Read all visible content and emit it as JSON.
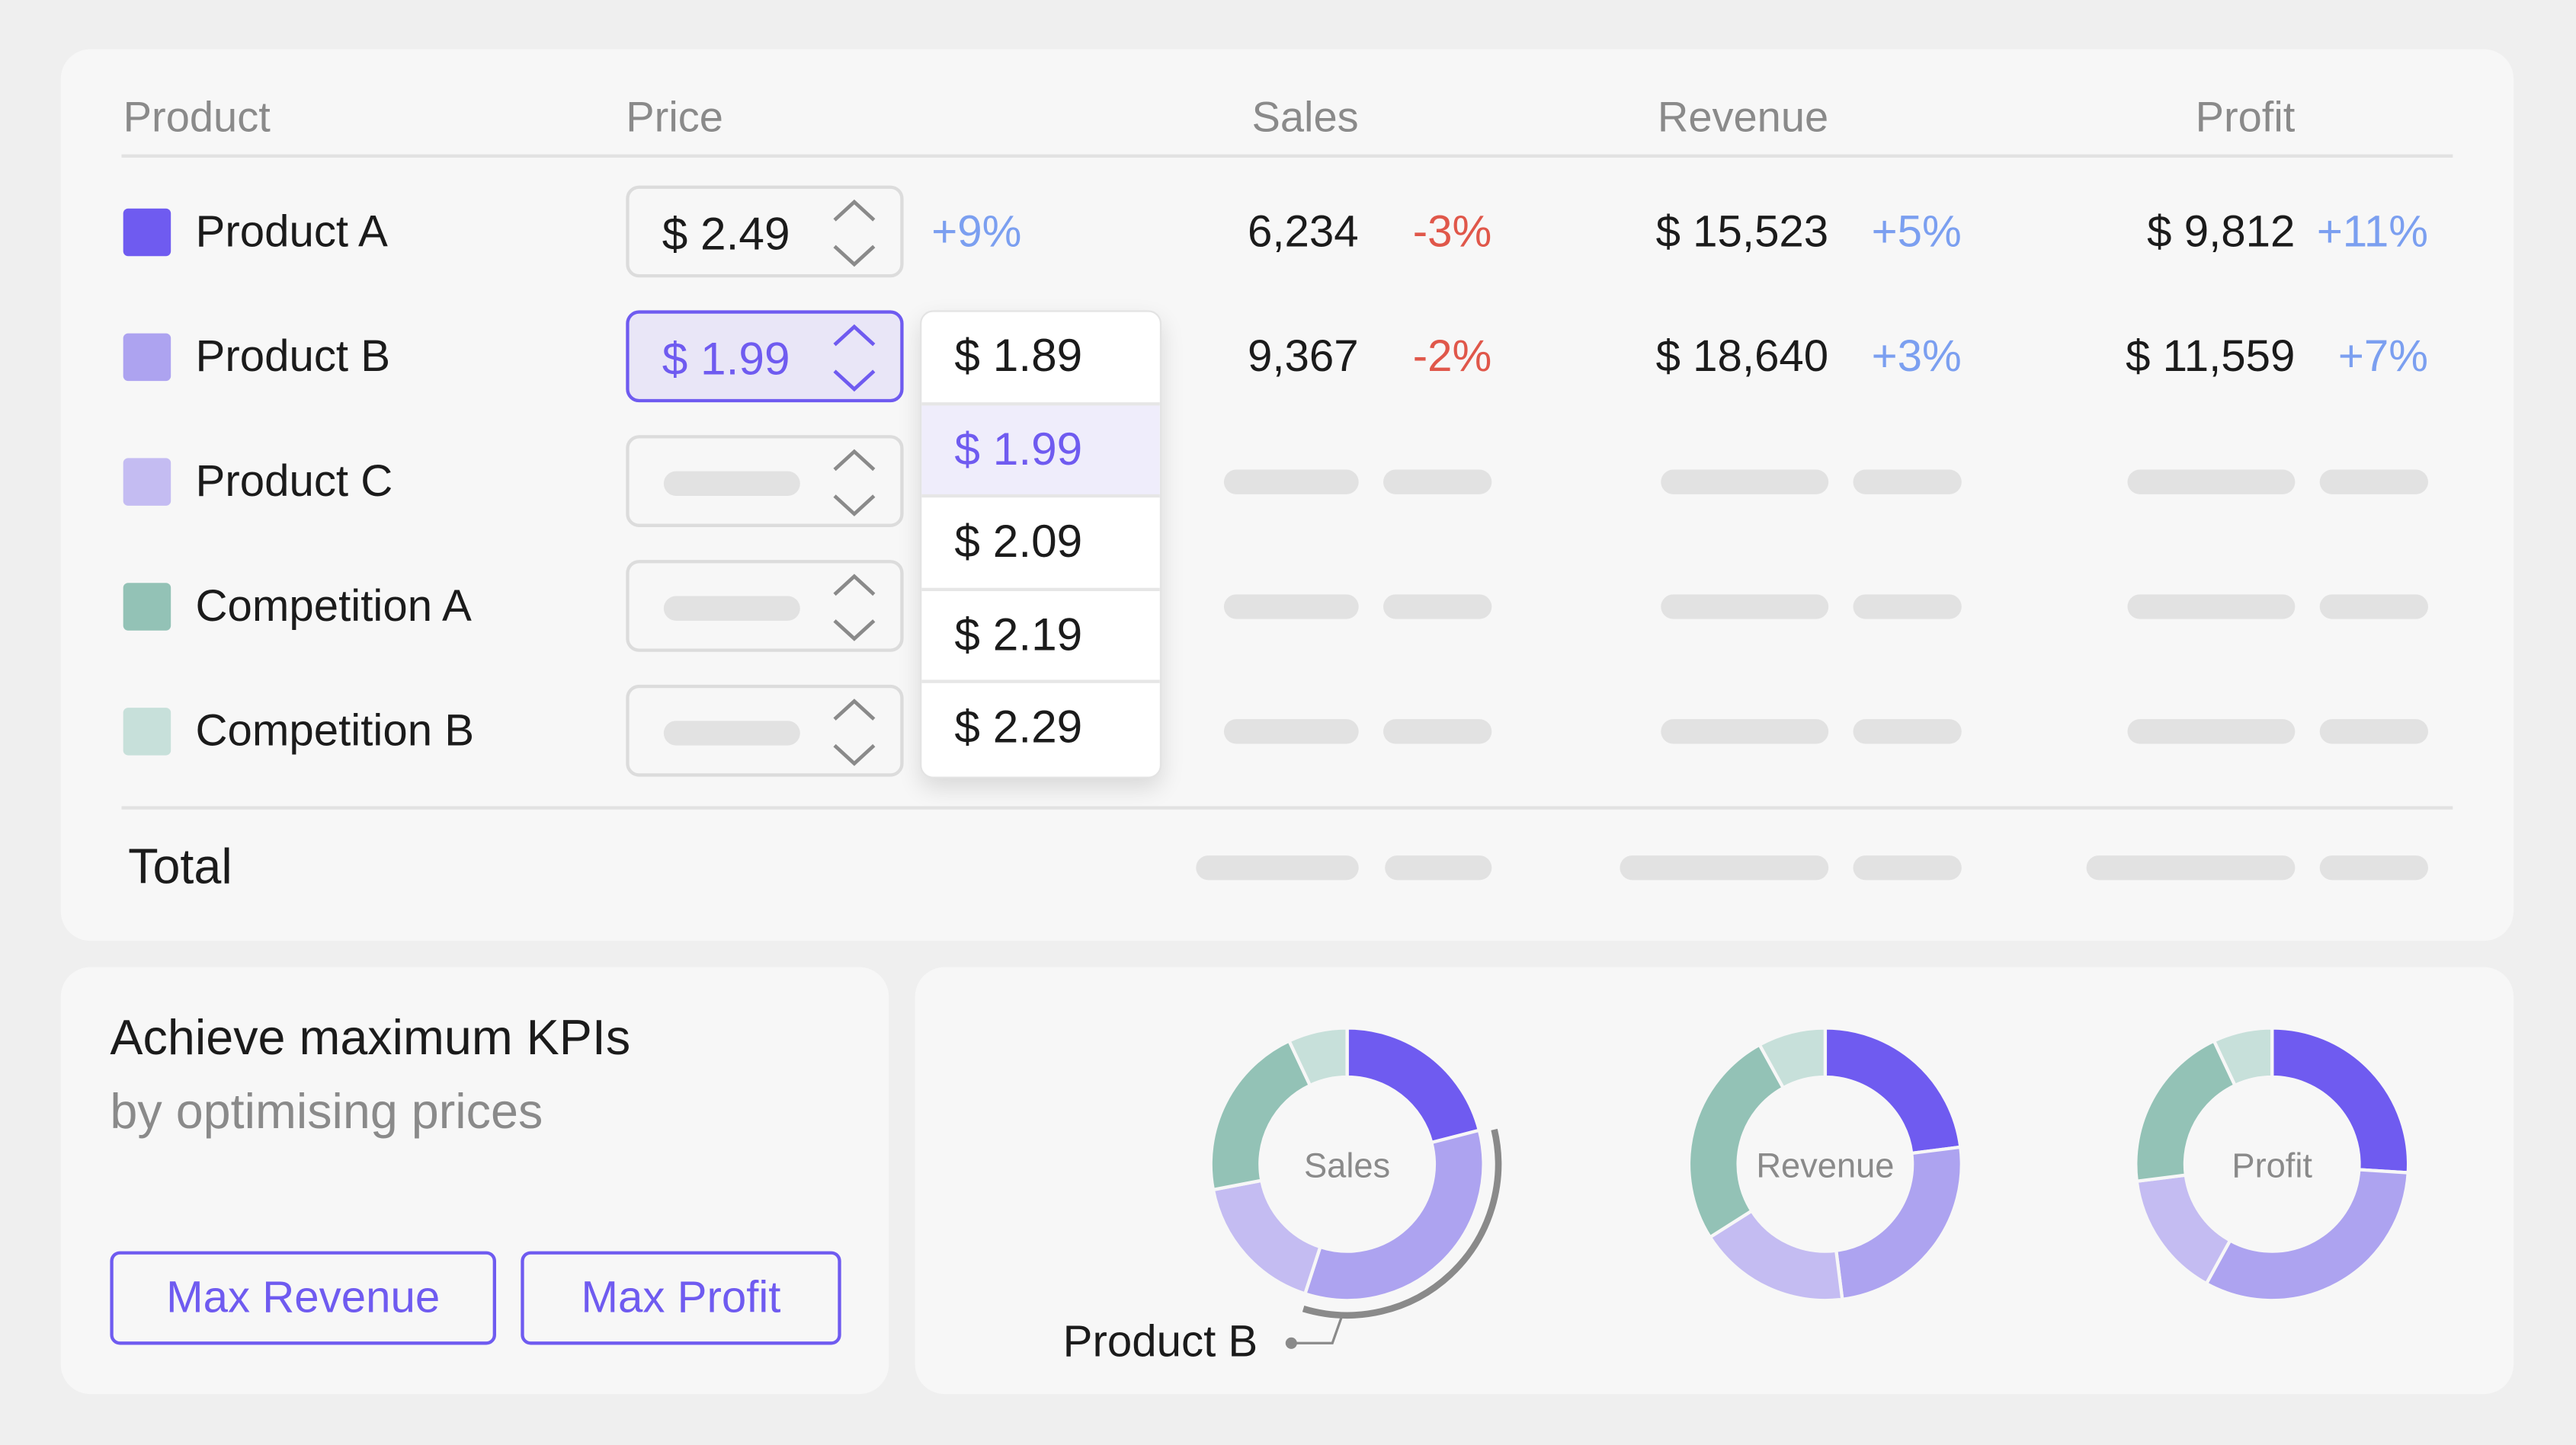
{
  "table": {
    "headers": {
      "product": "Product",
      "price": "Price",
      "sales": "Sales",
      "revenue": "Revenue",
      "profit": "Profit"
    },
    "rows": [
      {
        "name": "Product A",
        "color": "#6f5bf0",
        "price": "$ 2.49",
        "price_change": "+9%",
        "sales": "6,234",
        "sales_change": "-3%",
        "revenue": "$ 15,523",
        "revenue_change": "+5%",
        "profit": "$ 9,812",
        "profit_change": "+11%"
      },
      {
        "name": "Product B",
        "color": "#ada3f0",
        "price": "$ 1.99",
        "sales": "9,367",
        "sales_change": "-2%",
        "revenue": "$ 18,640",
        "revenue_change": "+3%",
        "profit": "$ 11,559",
        "profit_change": "+7%"
      },
      {
        "name": "Product C",
        "color": "#c4bcf2"
      },
      {
        "name": "Competition A",
        "color": "#93c2b6"
      },
      {
        "name": "Competition B",
        "color": "#c7e0da"
      }
    ],
    "total_label": "Total",
    "price_dropdown": {
      "options": [
        "$ 1.89",
        "$ 1.99",
        "$ 2.09",
        "$ 2.19",
        "$ 2.29"
      ],
      "selected": "$ 1.99"
    },
    "colors": {
      "positive": "#7b9ff0",
      "negative": "#e0574a",
      "accent": "#6f5bf0"
    }
  },
  "promo": {
    "title": "Achieve maximum KPIs",
    "subtitle": "by optimising prices",
    "max_revenue_label": "Max Revenue",
    "max_profit_label": "Max Profit"
  },
  "chart_data": [
    {
      "type": "pie",
      "title": "Sales",
      "categories": [
        "Product A",
        "Product B",
        "Product C",
        "Competition A",
        "Competition B"
      ],
      "values": [
        0.21,
        0.34,
        0.17,
        0.21,
        0.07
      ]
    },
    {
      "type": "pie",
      "title": "Revenue",
      "categories": [
        "Product A",
        "Product B",
        "Product C",
        "Competition A",
        "Competition B"
      ],
      "values": [
        0.23,
        0.25,
        0.18,
        0.26,
        0.08
      ]
    },
    {
      "type": "pie",
      "title": "Profit",
      "categories": [
        "Product A",
        "Product B",
        "Product C",
        "Competition A",
        "Competition B"
      ],
      "values": [
        0.26,
        0.32,
        0.15,
        0.2,
        0.07
      ]
    }
  ],
  "callout": {
    "label": "Product B"
  }
}
